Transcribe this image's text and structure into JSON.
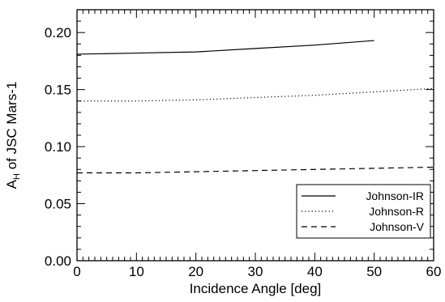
{
  "chart_data": {
    "type": "line",
    "xlabel": "Incidence Angle [deg]",
    "ylabel": {
      "prefix": "A",
      "subscript": "H",
      "suffix": " of JSC Mars-1"
    },
    "xlim": [
      0,
      60
    ],
    "ylim": [
      0.0,
      0.22
    ],
    "x_ticks": [
      0,
      10,
      20,
      30,
      40,
      50,
      60
    ],
    "x_tick_labels": [
      "0",
      "10",
      "20",
      "30",
      "40",
      "50",
      "60"
    ],
    "y_ticks": [
      0.0,
      0.05,
      0.1,
      0.15,
      0.2
    ],
    "y_tick_labels": [
      "0.00",
      "0.05",
      "0.10",
      "0.15",
      "0.20"
    ],
    "grid": false,
    "legend_position": "bottom-right",
    "series": [
      {
        "name": "Johnson-IR",
        "line_style": "solid",
        "color": "#000000",
        "x": [
          0,
          10,
          20,
          30,
          40,
          50
        ],
        "values": [
          0.181,
          0.182,
          0.183,
          0.186,
          0.189,
          0.193
        ]
      },
      {
        "name": "Johnson-R",
        "line_style": "dotted",
        "color": "#000000",
        "x": [
          0,
          10,
          20,
          30,
          40,
          50,
          60
        ],
        "values": [
          0.14,
          0.14,
          0.141,
          0.143,
          0.145,
          0.148,
          0.151
        ]
      },
      {
        "name": "Johnson-V",
        "line_style": "dashed",
        "color": "#000000",
        "x": [
          0,
          10,
          20,
          30,
          40,
          50,
          60
        ],
        "values": [
          0.077,
          0.077,
          0.078,
          0.079,
          0.08,
          0.081,
          0.082
        ]
      }
    ]
  }
}
